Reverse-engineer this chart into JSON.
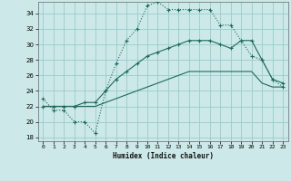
{
  "xlabel": "Humidex (Indice chaleur)",
  "bg_color": "#cce8e8",
  "grid_color": "#99cccc",
  "line_color": "#1a6b5a",
  "xlim": [
    -0.5,
    23.5
  ],
  "ylim": [
    17.5,
    35.5
  ],
  "yticks": [
    18,
    20,
    22,
    24,
    26,
    28,
    30,
    32,
    34
  ],
  "xticks": [
    0,
    1,
    2,
    3,
    4,
    5,
    6,
    7,
    8,
    9,
    10,
    11,
    12,
    13,
    14,
    15,
    16,
    17,
    18,
    19,
    20,
    21,
    22,
    23
  ],
  "line1_x": [
    0,
    1,
    2,
    3,
    4,
    5,
    6,
    7,
    8,
    9,
    10,
    11,
    12,
    13,
    14,
    15,
    16,
    17,
    18,
    19,
    20,
    21,
    22,
    23
  ],
  "line1_y": [
    23.0,
    21.5,
    21.5,
    20.0,
    20.0,
    18.5,
    24.0,
    27.5,
    30.5,
    32.0,
    35.0,
    35.5,
    34.5,
    34.5,
    34.5,
    34.5,
    34.5,
    32.5,
    32.5,
    30.5,
    28.5,
    28.0,
    25.5,
    24.5
  ],
  "line2_x": [
    0,
    1,
    2,
    3,
    4,
    5,
    6,
    7,
    8,
    9,
    10,
    11,
    12,
    13,
    14,
    15,
    16,
    17,
    18,
    19,
    20,
    21,
    22,
    23
  ],
  "line2_y": [
    22.0,
    22.0,
    22.0,
    22.0,
    22.5,
    22.5,
    24.0,
    25.5,
    26.5,
    27.5,
    28.5,
    29.0,
    29.5,
    30.0,
    30.5,
    30.5,
    30.5,
    30.0,
    29.5,
    30.5,
    30.5,
    28.0,
    25.5,
    25.0
  ],
  "line3_x": [
    0,
    1,
    2,
    3,
    4,
    5,
    6,
    7,
    8,
    9,
    10,
    11,
    12,
    13,
    14,
    15,
    16,
    17,
    18,
    19,
    20,
    21,
    22,
    23
  ],
  "line3_y": [
    22.0,
    22.0,
    22.0,
    22.0,
    22.0,
    22.0,
    22.5,
    23.0,
    23.5,
    24.0,
    24.5,
    25.0,
    25.5,
    26.0,
    26.5,
    26.5,
    26.5,
    26.5,
    26.5,
    26.5,
    26.5,
    25.0,
    24.5,
    24.5
  ]
}
